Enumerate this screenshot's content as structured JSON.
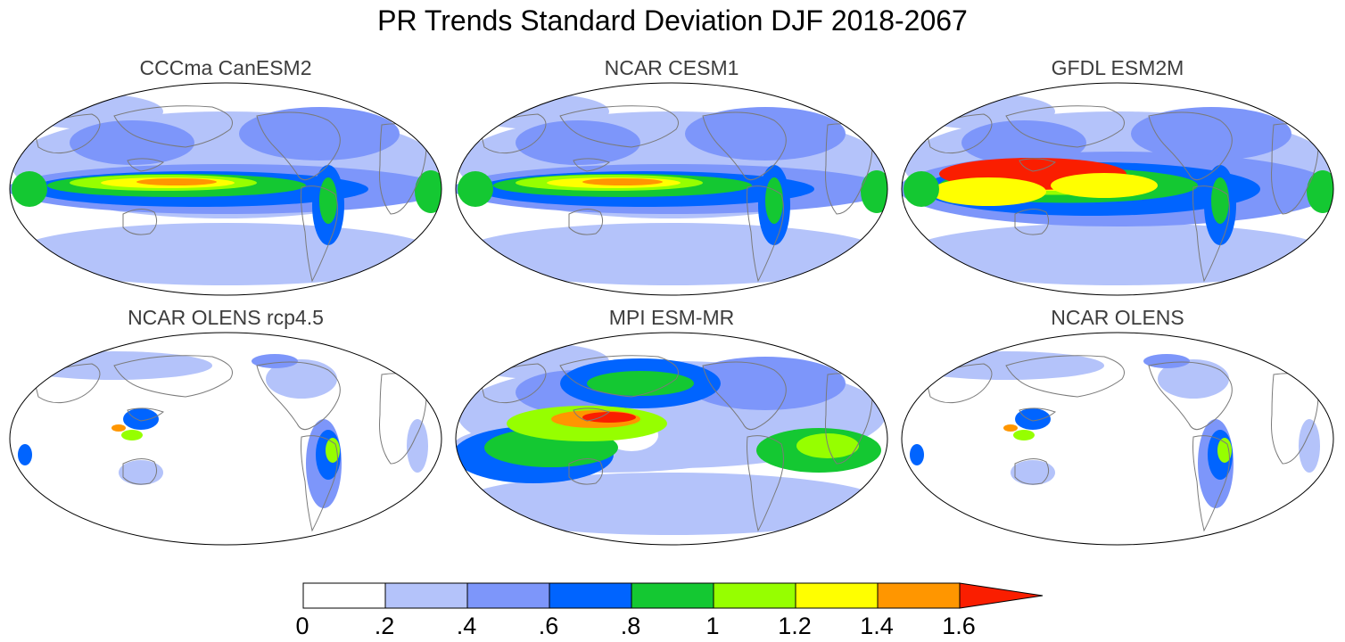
{
  "title": "PR Trends Standard Deviation DJF 2018-2067",
  "panels": [
    {
      "title": "CCCma CanESM2",
      "pattern": "broad"
    },
    {
      "title": "NCAR CESM1",
      "pattern": "broad"
    },
    {
      "title": "GFDL ESM2M",
      "pattern": "strong"
    },
    {
      "title": "NCAR OLENS rcp4.5",
      "pattern": "land"
    },
    {
      "title": "MPI ESM-MR",
      "pattern": "mpi"
    },
    {
      "title": "NCAR OLENS",
      "pattern": "land"
    }
  ],
  "colorbar": {
    "ticks": [
      "0",
      ".2",
      ".4",
      ".6",
      ".8",
      "1",
      "1.2",
      "1.4",
      "1.6"
    ],
    "colors": [
      "#ffffff",
      "#b4c3fa",
      "#7d96fa",
      "#0064ff",
      "#14c832",
      "#96ff00",
      "#ffff00",
      "#ff9600",
      "#fa1e00"
    ]
  }
}
